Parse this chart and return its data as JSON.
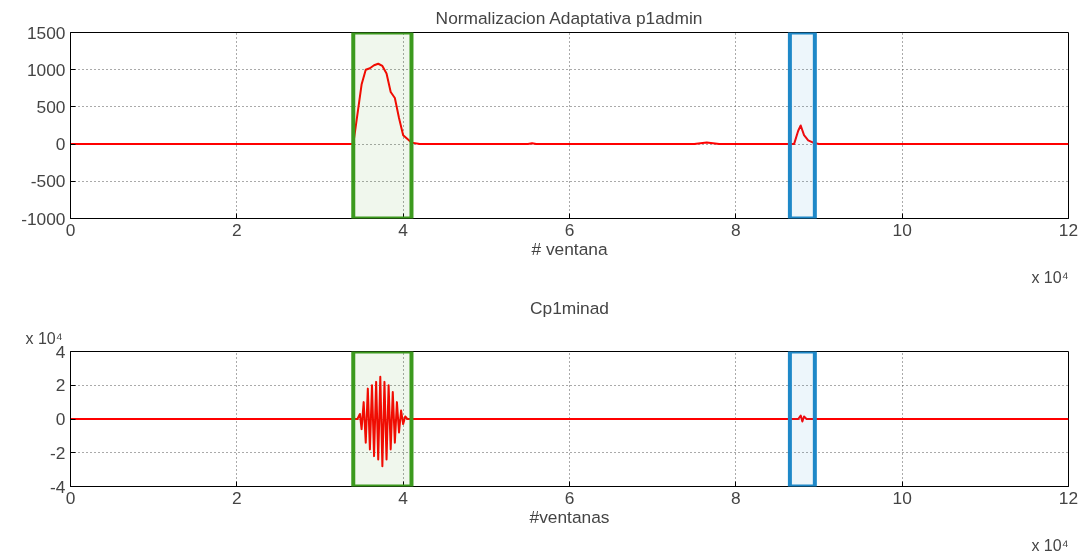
{
  "chart_data": [
    {
      "type": "line",
      "title": "Normalizacion Adaptativa p1admin",
      "xlabel": "# ventana",
      "annotations": [
        "x 10⁴"
      ],
      "xlim": [
        0,
        12
      ],
      "xticks": [
        0,
        2,
        4,
        6,
        8,
        10,
        12
      ],
      "ylim": [
        -1000,
        1500
      ],
      "yticks": [
        -1000,
        -500,
        0,
        500,
        1000,
        1500
      ],
      "grid": true,
      "line_style": "solid",
      "bands": [
        {
          "axis": "x",
          "from": 3.4,
          "to": 4.1,
          "color": "#3c9a1e"
        },
        {
          "axis": "x",
          "from": 8.65,
          "to": 8.95,
          "color": "#1e88c8"
        }
      ],
      "series": [
        {
          "color": "#ff0000",
          "x": [
            0,
            3.4,
            3.45,
            3.5,
            3.55,
            3.6,
            3.65,
            3.7,
            3.75,
            3.8,
            3.85,
            3.9,
            3.95,
            4.0,
            4.1,
            4.2,
            5.5,
            5.55,
            5.6,
            7.5,
            7.65,
            7.8,
            8.7,
            8.75,
            8.78,
            8.82,
            8.87,
            8.95,
            9.0,
            12
          ],
          "values": [
            0,
            0,
            400,
            800,
            1000,
            1020,
            1060,
            1080,
            1050,
            950,
            700,
            620,
            350,
            120,
            20,
            0,
            0,
            10,
            0,
            0,
            20,
            0,
            0,
            180,
            250,
            120,
            50,
            10,
            0,
            0
          ]
        }
      ]
    },
    {
      "type": "line",
      "title": "Cp1minad",
      "xlabel": "#ventanas",
      "annotations": [
        "x 10⁴",
        "x 10⁴"
      ],
      "xlim": [
        0,
        12
      ],
      "xticks": [
        0,
        2,
        4,
        6,
        8,
        10,
        12
      ],
      "ylim": [
        -4,
        4
      ],
      "yticks": [
        -4,
        -2,
        0,
        2,
        4
      ],
      "grid": true,
      "line_style": "solid",
      "bands": [
        {
          "axis": "x",
          "from": 3.4,
          "to": 4.1,
          "color": "#3c9a1e"
        },
        {
          "axis": "x",
          "from": 8.65,
          "to": 8.95,
          "color": "#1e88c8"
        }
      ],
      "series": [
        {
          "color": "#ff0000",
          "x": [
            0,
            3.45,
            3.48,
            3.5,
            3.525,
            3.55,
            3.575,
            3.6,
            3.625,
            3.65,
            3.675,
            3.7,
            3.725,
            3.75,
            3.775,
            3.8,
            3.825,
            3.85,
            3.875,
            3.9,
            3.925,
            3.95,
            3.975,
            4.0,
            4.025,
            4.05,
            4.1,
            8.75,
            8.78,
            8.8,
            8.82,
            8.85,
            12
          ],
          "values": [
            0,
            0,
            0.3,
            -0.6,
            1.0,
            -1.4,
            1.8,
            -1.8,
            2.0,
            -2.2,
            2.2,
            -2.4,
            2.5,
            -2.8,
            2.2,
            -2.4,
            2.0,
            -1.8,
            1.6,
            -1.4,
            1.0,
            -0.8,
            0.5,
            -0.3,
            0.15,
            0,
            0,
            0,
            0.2,
            -0.15,
            0.15,
            0,
            0
          ]
        }
      ]
    }
  ]
}
